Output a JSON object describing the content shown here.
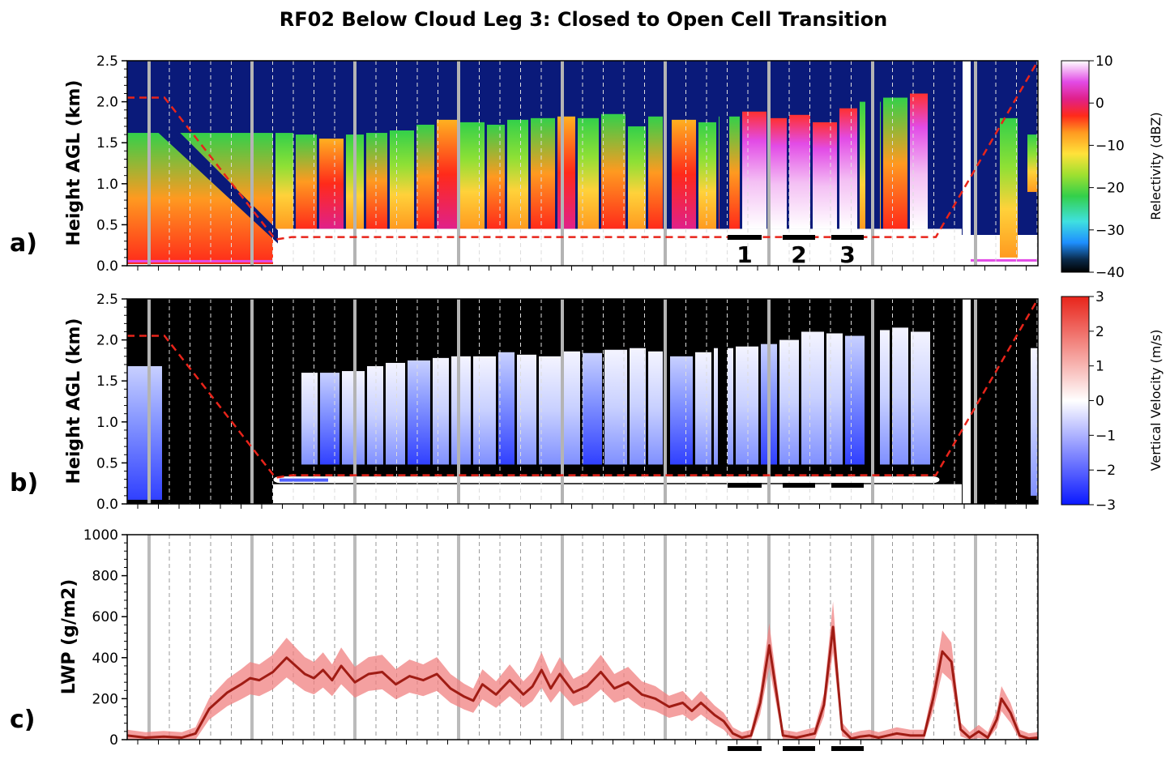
{
  "title": "RF02 Below Cloud Leg 3: Closed to Open Cell Transition",
  "chart_data": [
    {
      "panel": "a)",
      "type": "heatmap",
      "ylabel": "Height AGL (km)",
      "ylim": [
        0,
        2.5
      ],
      "yticks": [
        "0.0",
        "0.5",
        "1.0",
        "1.5",
        "2.0",
        "2.5"
      ],
      "colorbar": {
        "label": "Relectivity (dBZ)",
        "range": [
          -40,
          10
        ],
        "ticks": [
          "10",
          "0",
          "−10",
          "−20",
          "−30",
          "−40"
        ]
      },
      "aircraft_altitude_km": {
        "start": 2.05,
        "descent_to": 0.32,
        "level": 0.35,
        "climb_to": 2.5
      },
      "cell_labels": [
        "1",
        "2",
        "3"
      ]
    },
    {
      "panel": "b)",
      "type": "heatmap",
      "ylabel": "Height AGL (km)",
      "ylim": [
        0,
        2.5
      ],
      "yticks": [
        "0.0",
        "0.5",
        "1.0",
        "1.5",
        "2.0",
        "2.5"
      ],
      "colorbar": {
        "label": "Vertical Velocity (m/s)",
        "range": [
          -3,
          3
        ],
        "ticks": [
          "3",
          "2",
          "1",
          "0",
          "−1",
          "−2",
          "−3"
        ]
      }
    },
    {
      "panel": "c)",
      "type": "line",
      "ylabel": "LWP (g/m2)",
      "ylim": [
        0,
        1000
      ],
      "yticks": [
        "0",
        "200",
        "400",
        "600",
        "800",
        "1000"
      ],
      "series": [
        {
          "x": [
            0,
            0.02,
            0.04,
            0.06,
            0.075,
            0.09,
            0.11,
            0.125,
            0.135,
            0.145,
            0.16,
            0.175,
            0.185,
            0.195,
            0.205,
            0.215,
            0.225,
            0.235,
            0.25,
            0.265,
            0.28,
            0.295,
            0.31,
            0.325,
            0.34,
            0.355,
            0.37,
            0.38,
            0.39,
            0.405,
            0.42,
            0.435,
            0.445,
            0.455,
            0.465,
            0.475,
            0.49,
            0.505,
            0.52,
            0.535,
            0.55,
            0.565,
            0.58,
            0.595,
            0.61,
            0.62,
            0.63,
            0.645,
            0.655,
            0.665,
            0.675,
            0.685,
            0.695,
            0.705,
            0.72,
            0.735,
            0.745,
            0.755,
            0.765,
            0.775,
            0.785,
            0.795,
            0.805,
            0.815,
            0.825,
            0.835,
            0.845,
            0.86,
            0.875,
            0.885,
            0.895,
            0.905,
            0.915,
            0.925,
            0.935,
            0.945,
            0.955,
            0.96,
            0.97,
            0.98,
            0.99,
            1.0
          ],
          "y": [
            20,
            10,
            15,
            10,
            30,
            150,
            230,
            270,
            300,
            290,
            330,
            400,
            360,
            320,
            300,
            340,
            290,
            360,
            280,
            320,
            330,
            270,
            310,
            290,
            320,
            250,
            210,
            190,
            270,
            220,
            290,
            220,
            260,
            340,
            250,
            320,
            230,
            260,
            330,
            250,
            280,
            220,
            200,
            160,
            180,
            140,
            180,
            120,
            90,
            30,
            10,
            20,
            180,
            460,
            20,
            10,
            20,
            30,
            170,
            550,
            50,
            5,
            15,
            20,
            10,
            20,
            30,
            20,
            20,
            200,
            430,
            380,
            50,
            10,
            40,
            10,
            100,
            200,
            130,
            20,
            5,
            10
          ]
        }
      ]
    }
  ]
}
